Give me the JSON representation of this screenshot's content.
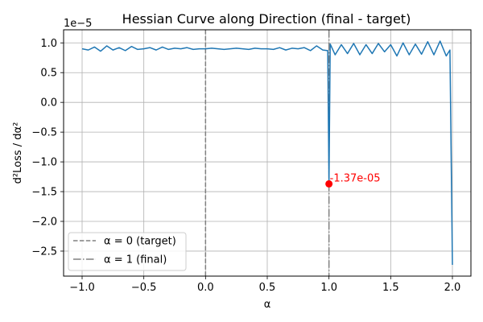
{
  "chart_data": {
    "type": "line",
    "title": "Hessian Curve along Direction (final - target)",
    "xlabel": "α",
    "ylabel": "d²Loss / dα²",
    "y_scale_label": "1e−5",
    "y_multiplier": 1e-05,
    "xlim": [
      -1.15,
      2.15
    ],
    "ylim": [
      -2.92,
      1.22
    ],
    "x_ticks": [
      -1.0,
      -0.5,
      0.0,
      0.5,
      1.0,
      1.5,
      2.0
    ],
    "x_tick_labels": [
      "−1.0",
      "−0.5",
      "0.0",
      "0.5",
      "1.0",
      "1.5",
      "2.0"
    ],
    "y_ticks": [
      1.0,
      0.5,
      0.0,
      -0.5,
      -1.0,
      -1.5,
      -2.0,
      -2.5
    ],
    "y_tick_labels": [
      "1.0",
      "0.5",
      "0.0",
      "−0.5",
      "−1.0",
      "−1.5",
      "−2.0",
      "−2.5"
    ],
    "grid": true,
    "legend_position": "lower-left",
    "series": [
      {
        "color": "#1f77b4",
        "x": [
          -1.0,
          -0.95,
          -0.9,
          -0.85,
          -0.8,
          -0.75,
          -0.7,
          -0.65,
          -0.6,
          -0.55,
          -0.5,
          -0.45,
          -0.4,
          -0.35,
          -0.3,
          -0.25,
          -0.2,
          -0.15,
          -0.1,
          -0.05,
          0.0,
          0.05,
          0.1,
          0.15,
          0.2,
          0.25,
          0.3,
          0.35,
          0.4,
          0.45,
          0.5,
          0.55,
          0.6,
          0.65,
          0.7,
          0.75,
          0.8,
          0.85,
          0.9,
          0.95,
          0.99,
          1.0,
          1.01,
          1.05,
          1.1,
          1.15,
          1.2,
          1.25,
          1.3,
          1.35,
          1.4,
          1.45,
          1.5,
          1.55,
          1.6,
          1.65,
          1.7,
          1.75,
          1.8,
          1.85,
          1.9,
          1.95,
          1.98,
          2.0
        ],
        "y": [
          0.9,
          0.88,
          0.93,
          0.86,
          0.95,
          0.88,
          0.92,
          0.87,
          0.94,
          0.89,
          0.9,
          0.92,
          0.88,
          0.93,
          0.89,
          0.91,
          0.9,
          0.92,
          0.89,
          0.9,
          0.9,
          0.91,
          0.9,
          0.89,
          0.9,
          0.91,
          0.9,
          0.89,
          0.91,
          0.9,
          0.9,
          0.89,
          0.92,
          0.88,
          0.91,
          0.9,
          0.92,
          0.87,
          0.95,
          0.88,
          0.87,
          -1.37,
          0.98,
          0.8,
          0.97,
          0.82,
          0.99,
          0.8,
          0.97,
          0.82,
          0.99,
          0.85,
          0.97,
          0.78,
          1.0,
          0.8,
          0.98,
          0.81,
          1.02,
          0.8,
          1.03,
          0.78,
          0.88,
          -2.73
        ]
      }
    ],
    "vlines": [
      {
        "x": 0.0,
        "style": "dashed",
        "color": "#808080",
        "label": "α = 0 (target)"
      },
      {
        "x": 1.0,
        "style": "dashdot",
        "color": "#808080",
        "label": "α = 1 (final)"
      }
    ],
    "marker": {
      "x": 1.0,
      "y": -1.37,
      "color": "#ff0000",
      "label": "-1.37e-05"
    },
    "legend": [
      "α = 0 (target)",
      "α = 1 (final)"
    ]
  }
}
